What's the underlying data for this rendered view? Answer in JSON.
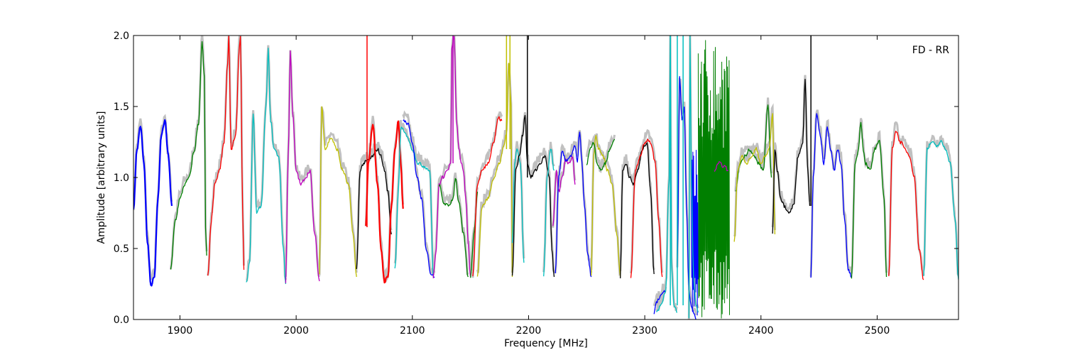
{
  "chart_data": {
    "type": "line",
    "title": "",
    "xlabel": "Frequency [MHz]",
    "ylabel": "Amplitude [arbitrary units]",
    "annotation": "FD - RR",
    "xlim": [
      1860,
      2570
    ],
    "ylim": [
      0,
      2.0
    ],
    "xticks": [
      1900,
      2000,
      2100,
      2200,
      2300,
      2400,
      2500
    ],
    "yticks": [
      0.0,
      0.5,
      1.0,
      1.5,
      2.0
    ],
    "xtick_labels": [
      "1900",
      "2000",
      "2100",
      "2200",
      "2300",
      "2400",
      "2500"
    ],
    "ytick_labels": [
      "0.0",
      "0.5",
      "1.0",
      "1.5",
      "2.0"
    ],
    "grid": false,
    "background_color": "#c0c0c0",
    "colors": {
      "b": "#0000ff",
      "g": "#007f00",
      "r": "#ff0000",
      "c": "#00bfbf",
      "m": "#bf00bf",
      "y": "#bfbf00",
      "k": "#000000"
    },
    "series": [
      {
        "color": "b",
        "x": [
          1860,
          1863,
          1866,
          1869,
          1872,
          1875,
          1878,
          1881,
          1884,
          1887,
          1890,
          1893
        ],
        "y": [
          0.78,
          1.2,
          1.37,
          1.1,
          0.55,
          0.24,
          0.3,
          0.85,
          1.3,
          1.4,
          1.15,
          0.8
        ]
      },
      {
        "color": "g",
        "x": [
          1892,
          1896,
          1900,
          1904,
          1908,
          1912,
          1916,
          1919,
          1921,
          1922,
          1923
        ],
        "y": [
          0.35,
          0.7,
          0.85,
          0.95,
          1.0,
          1.18,
          1.38,
          1.95,
          1.7,
          0.65,
          0.45
        ]
      },
      {
        "color": "r",
        "x": [
          1924,
          1927,
          1930,
          1934,
          1938,
          1941,
          1942,
          1944,
          1948,
          1951,
          1952,
          1954,
          1955
        ],
        "y": [
          0.3,
          0.7,
          0.95,
          1.05,
          1.25,
          1.8,
          2.0,
          1.2,
          1.3,
          1.9,
          2.0,
          0.75,
          0.35
        ]
      },
      {
        "color": "c",
        "x": [
          1957,
          1960,
          1963,
          1966,
          1970,
          1974,
          1976,
          1978,
          1981,
          1985,
          1989,
          1991
        ],
        "y": [
          0.25,
          0.4,
          1.45,
          0.75,
          0.8,
          1.5,
          1.9,
          1.4,
          1.2,
          1.15,
          0.5,
          0.25
        ]
      },
      {
        "color": "m",
        "x": [
          1991,
          1993,
          1995,
          1997,
          2000,
          2004,
          2008,
          2012,
          2016,
          2020
        ],
        "y": [
          0.25,
          1.1,
          1.9,
          1.45,
          1.05,
          0.95,
          1.0,
          1.05,
          0.6,
          0.27
        ]
      },
      {
        "color": "y",
        "x": [
          2020,
          2022,
          2025,
          2030,
          2035,
          2040,
          2045,
          2049,
          2052
        ],
        "y": [
          0.32,
          1.5,
          1.2,
          1.28,
          1.2,
          1.05,
          0.95,
          0.6,
          0.3
        ]
      },
      {
        "color": "k",
        "x": [
          2052,
          2055,
          2058,
          2062,
          2066,
          2070,
          2073,
          2076,
          2079,
          2082
        ],
        "y": [
          0.35,
          1.05,
          1.1,
          1.12,
          1.15,
          1.2,
          1.15,
          1.05,
          0.9,
          0.6
        ]
      },
      {
        "color": "r",
        "x": [
          2060,
          2062,
          2066,
          2070,
          2073,
          2076,
          2079,
          2082,
          2085,
          2088,
          2090,
          2092
        ],
        "y": [
          0.65,
          1.1,
          1.38,
          0.95,
          0.5,
          0.27,
          0.3,
          0.8,
          1.2,
          1.4,
          1.1,
          0.78
        ]
      },
      {
        "color": "c",
        "x": [
          2085,
          2088,
          2090,
          2095,
          2100,
          2105,
          2110,
          2115,
          2118
        ],
        "y": [
          0.35,
          0.9,
          1.35,
          1.3,
          1.2,
          1.1,
          1.08,
          1.05,
          0.3
        ]
      },
      {
        "color": "b",
        "x": [
          2092,
          2096,
          2100,
          2104,
          2108,
          2112,
          2116,
          2119
        ],
        "y": [
          1.4,
          1.38,
          1.25,
          1.0,
          0.85,
          0.5,
          0.32,
          0.3
        ]
      },
      {
        "color": "m",
        "x": [
          2118,
          2120,
          2123,
          2126,
          2130,
          2133,
          2134,
          2136,
          2138,
          2140,
          2142
        ],
        "y": [
          0.3,
          0.45,
          0.95,
          1.0,
          1.05,
          1.1,
          1.9,
          2.0,
          1.4,
          1.2,
          1.1
        ]
      },
      {
        "color": "g",
        "x": [
          2123,
          2127,
          2131,
          2135,
          2137,
          2140,
          2144,
          2148
        ],
        "y": [
          0.95,
          0.82,
          0.8,
          0.85,
          1.0,
          0.82,
          0.6,
          0.3
        ]
      },
      {
        "color": "m",
        "x": [
          2142,
          2144,
          2146,
          2148,
          2150
        ],
        "y": [
          1.1,
          1.05,
          0.85,
          0.55,
          0.3
        ]
      },
      {
        "color": "g",
        "x": [
          2150,
          2153,
          2156
        ],
        "y": [
          0.3,
          0.6,
          0.9
        ]
      },
      {
        "color": "r",
        "x": [
          2152,
          2156,
          2160,
          2165,
          2170,
          2174,
          2177
        ],
        "y": [
          0.3,
          0.95,
          1.05,
          1.1,
          1.25,
          1.42,
          1.4
        ]
      },
      {
        "color": "y",
        "x": [
          2156,
          2160,
          2165,
          2170,
          2175,
          2178,
          2181,
          2183,
          2185,
          2186
        ],
        "y": [
          0.3,
          0.8,
          0.85,
          1.0,
          1.1,
          1.2,
          1.3,
          1.8,
          1.5,
          0.3
        ]
      },
      {
        "color": "c",
        "x": [
          2186,
          2188,
          2190,
          2193,
          2196
        ],
        "y": [
          0.55,
          1.1,
          1.2,
          1.1,
          0.4
        ]
      },
      {
        "color": "k",
        "x": [
          2186,
          2189,
          2192,
          2195,
          2197,
          2199,
          2202,
          2206,
          2210,
          2214,
          2218,
          2220,
          2222
        ],
        "y": [
          0.3,
          1.05,
          1.15,
          1.3,
          1.45,
          1.1,
          1.0,
          1.05,
          1.1,
          1.15,
          1.0,
          0.5,
          0.3
        ]
      },
      {
        "color": "c",
        "x": [
          2213,
          2216,
          2219,
          2222
        ],
        "y": [
          0.3,
          1.0,
          1.2,
          1.05
        ]
      },
      {
        "color": "m",
        "x": [
          2221,
          2224,
          2226,
          2229,
          2232,
          2235,
          2238,
          2240
        ],
        "y": [
          0.65,
          1.05,
          0.9,
          1.0,
          1.12,
          1.1,
          1.15,
          0.95
        ]
      },
      {
        "color": "b",
        "x": [
          2223,
          2226,
          2229,
          2232,
          2236,
          2240,
          2242,
          2244,
          2246,
          2248,
          2251,
          2254
        ],
        "y": [
          0.32,
          1.0,
          1.18,
          1.12,
          1.15,
          1.22,
          1.1,
          1.33,
          1.1,
          0.8,
          0.45,
          0.3
        ]
      },
      {
        "color": "y",
        "x": [
          2254,
          2256,
          2258,
          2260,
          2264,
          2268,
          2272,
          2276,
          2279
        ],
        "y": [
          0.3,
          1.15,
          1.3,
          1.2,
          1.15,
          1.05,
          0.95,
          0.6,
          0.3
        ]
      },
      {
        "color": "g",
        "x": [
          2250,
          2253,
          2256,
          2259,
          2262,
          2266,
          2270,
          2274
        ],
        "y": [
          1.1,
          1.2,
          1.25,
          1.1,
          1.05,
          1.1,
          1.2,
          1.27
        ]
      },
      {
        "color": "k",
        "x": [
          2279,
          2281,
          2284,
          2287,
          2290,
          2294,
          2298,
          2302,
          2305,
          2308
        ],
        "y": [
          0.3,
          1.05,
          1.1,
          1.0,
          0.95,
          1.05,
          1.2,
          1.25,
          0.9,
          0.32
        ]
      },
      {
        "color": "r",
        "x": [
          2288,
          2292,
          2296,
          2300,
          2303,
          2306,
          2309,
          2312,
          2315
        ],
        "y": [
          0.3,
          1.05,
          1.15,
          1.25,
          1.27,
          1.22,
          1.1,
          0.7,
          0.3
        ]
      },
      {
        "color": "b",
        "x": [
          2308,
          2310,
          2312,
          2315,
          2318
        ],
        "y": [
          0.05,
          0.12,
          0.15,
          0.18,
          0.2
        ]
      },
      {
        "color": "c",
        "x": [
          2310,
          2314,
          2318,
          2321,
          2322,
          2323,
          2325,
          2328
        ],
        "y": [
          0.05,
          0.1,
          0.2,
          1.0,
          2.0,
          0.4,
          0.1,
          0.05
        ]
      },
      {
        "color": "b",
        "x": [
          2328,
          2330,
          2332,
          2334,
          2336,
          2338,
          2340,
          2342,
          2344
        ],
        "y": [
          0.35,
          1.7,
          1.4,
          1.5,
          0.8,
          0.2,
          0.1,
          0.05,
          0.0
        ]
      },
      {
        "color": "c",
        "x": [
          2338,
          2339,
          2340,
          2342,
          2344,
          2346
        ],
        "y": [
          0.0,
          2.0,
          1.0,
          0.3,
          0.1,
          0.05
        ]
      },
      {
        "color": "m",
        "x": [
          2360,
          2364,
          2368,
          2372
        ],
        "y": [
          1.05,
          1.1,
          1.08,
          1.05
        ]
      },
      {
        "color": "g",
        "x": [
          2378,
          2382,
          2386,
          2390,
          2394,
          2398,
          2402,
          2406,
          2409
        ],
        "y": [
          0.9,
          1.1,
          1.15,
          1.2,
          1.15,
          1.1,
          1.05,
          1.5,
          1.0
        ]
      },
      {
        "color": "y",
        "x": [
          2377,
          2380,
          2384,
          2388,
          2392,
          2396,
          2400,
          2404,
          2407,
          2410,
          2412
        ],
        "y": [
          0.55,
          1.05,
          1.15,
          1.1,
          1.15,
          1.2,
          1.1,
          1.15,
          1.2,
          1.45,
          0.6
        ]
      },
      {
        "color": "k",
        "x": [
          2410,
          2412,
          2414,
          2417,
          2420,
          2424,
          2428,
          2432,
          2436,
          2438,
          2440,
          2442
        ],
        "y": [
          0.6,
          1.2,
          1.05,
          0.85,
          0.8,
          0.75,
          0.8,
          1.15,
          1.25,
          1.7,
          1.1,
          0.8
        ]
      },
      {
        "color": "b",
        "x": [
          2443,
          2445,
          2448,
          2451,
          2454,
          2457,
          2460,
          2463,
          2466,
          2469,
          2472,
          2475,
          2478
        ],
        "y": [
          0.3,
          1.0,
          1.45,
          1.3,
          1.1,
          1.35,
          1.2,
          1.05,
          1.2,
          1.1,
          0.7,
          0.35,
          0.3
        ]
      },
      {
        "color": "g",
        "x": [
          2478,
          2481,
          2484,
          2486,
          2488,
          2490,
          2494,
          2498,
          2502,
          2506,
          2508
        ],
        "y": [
          0.3,
          1.1,
          1.2,
          1.4,
          1.2,
          1.1,
          1.05,
          1.2,
          1.25,
          0.85,
          0.3
        ]
      },
      {
        "color": "r",
        "x": [
          2510,
          2513,
          2516,
          2520,
          2524,
          2528,
          2532,
          2536,
          2540
        ],
        "y": [
          0.3,
          1.2,
          1.33,
          1.25,
          1.2,
          1.15,
          1.0,
          0.5,
          0.28
        ]
      },
      {
        "color": "c",
        "x": [
          2540,
          2543,
          2547,
          2551,
          2555,
          2559,
          2563,
          2567,
          2570
        ],
        "y": [
          0.3,
          1.2,
          1.25,
          1.22,
          1.25,
          1.2,
          1.1,
          0.7,
          0.28
        ]
      }
    ],
    "dense_bands": [
      {
        "color": "g",
        "xmin": 2346,
        "xmax": 2373,
        "ymin": 0.0,
        "ymax": 2.0
      },
      {
        "color": "b",
        "xmin": 2340,
        "xmax": 2346,
        "ymin": 0.0,
        "ymax": 1.2
      }
    ],
    "spikes": [
      {
        "color": "r",
        "x": 2061,
        "ymin": 0.65,
        "ymax": 2.0
      },
      {
        "color": "m",
        "x": 2135,
        "ymin": 1.1,
        "ymax": 2.0
      },
      {
        "color": "y",
        "x": 2181,
        "ymin": 1.2,
        "ymax": 2.0
      },
      {
        "color": "y",
        "x": 2184,
        "ymin": 1.2,
        "ymax": 2.0
      },
      {
        "color": "k",
        "x": 2199,
        "ymin": 1.0,
        "ymax": 2.0
      },
      {
        "color": "c",
        "x": 2322,
        "ymin": 0.1,
        "ymax": 2.0
      },
      {
        "color": "c",
        "x": 2328,
        "ymin": 0.1,
        "ymax": 2.0
      },
      {
        "color": "c",
        "x": 2333,
        "ymin": 0.1,
        "ymax": 2.0
      },
      {
        "color": "k",
        "x": 2443,
        "ymin": 0.8,
        "ymax": 2.0
      }
    ]
  }
}
